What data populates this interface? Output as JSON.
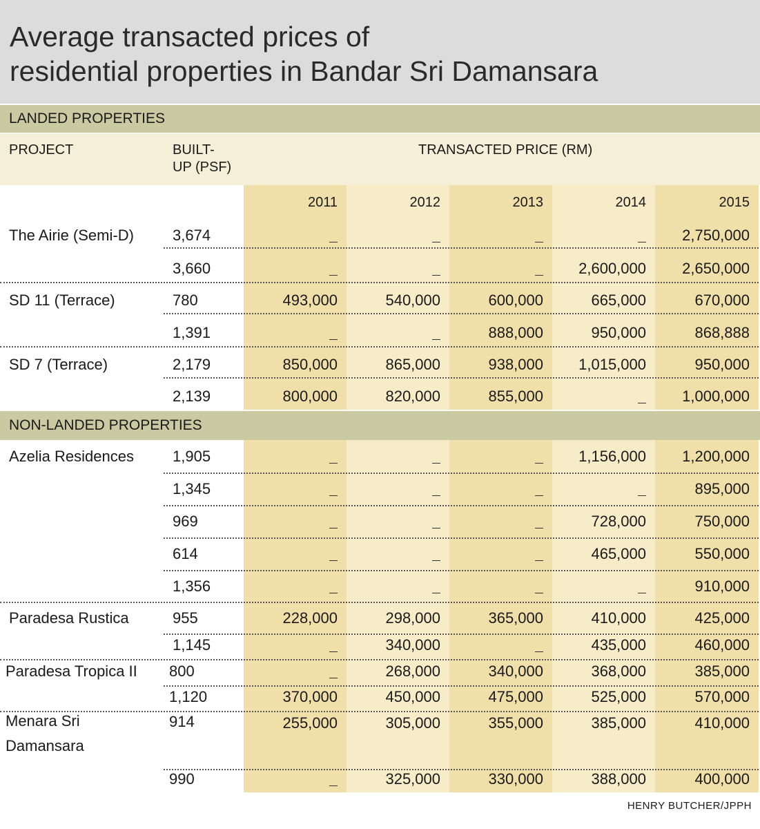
{
  "title": [
    "Average transacted prices of",
    "residential properties in Bandar Sri Damansara"
  ],
  "sections": {
    "landed": "LANDED PROPERTIES",
    "non_landed": "NON-LANDED PROPERTIES"
  },
  "headers": {
    "project": "PROJECT",
    "built_up_1": "BUILT-",
    "built_up_2": "UP (PSF)",
    "price": "TRANSACTED PRICE (RM)"
  },
  "years": [
    "2011",
    "2012",
    "2013",
    "2014",
    "2015"
  ],
  "landed_rows": [
    {
      "project": "The Airie (Semi-D)",
      "built": "3,674",
      "prices": [
        "_",
        "_",
        "_",
        "_",
        "2,750,000"
      ]
    },
    {
      "project": "",
      "built": "3,660",
      "prices": [
        "_",
        "_",
        "_",
        "2,600,000",
        "2,650,000"
      ]
    },
    {
      "project": "SD 11 (Terrace)",
      "built": "780",
      "prices": [
        "493,000",
        "540,000",
        "600,000",
        "665,000",
        "670,000"
      ]
    },
    {
      "project": "",
      "built": "1,391",
      "prices": [
        "_",
        "_",
        "888,000",
        "950,000",
        "868,888"
      ]
    },
    {
      "project": "SD 7 (Terrace)",
      "built": "2,179",
      "prices": [
        "850,000",
        "865,000",
        "938,000",
        "1,015,000",
        "950,000"
      ]
    },
    {
      "project": "",
      "built": "2,139",
      "prices": [
        "800,000",
        "820,000",
        "855,000",
        "_",
        "1,000,000"
      ]
    }
  ],
  "non_landed_rows": [
    {
      "project": "Azelia Residences",
      "built": "1,905",
      "prices": [
        "_",
        "_",
        "_",
        "1,156,000",
        "1,200,000"
      ]
    },
    {
      "project": "",
      "built": "1,345",
      "prices": [
        "_",
        "_",
        "_",
        "_",
        "895,000"
      ]
    },
    {
      "project": "",
      "built": "969",
      "prices": [
        "_",
        "_",
        "_",
        "728,000",
        "750,000"
      ]
    },
    {
      "project": "",
      "built": "614",
      "prices": [
        "_",
        "_",
        "_",
        "465,000",
        "550,000"
      ]
    },
    {
      "project": "",
      "built": "1,356",
      "prices": [
        "_",
        "_",
        "_",
        "_",
        "910,000"
      ]
    },
    {
      "project": "Paradesa Rustica",
      "built": "955",
      "prices": [
        "228,000",
        "298,000",
        "365,000",
        "410,000",
        "425,000"
      ]
    },
    {
      "project": "",
      "built": "1,145",
      "prices": [
        "_",
        "340,000",
        "_",
        "435,000",
        "460,000"
      ]
    },
    {
      "project": "Paradesa Tropica II",
      "built": "800",
      "prices": [
        "_",
        "268,000",
        "340,000",
        "368,000",
        "385,000"
      ]
    },
    {
      "project": "",
      "built": "1,120",
      "prices": [
        "370,000",
        "450,000",
        "475,000",
        "525,000",
        "570,000"
      ]
    },
    {
      "project": "Menara Sri Damansara",
      "built": "914",
      "prices": [
        "255,000",
        "305,000",
        "355,000",
        "385,000",
        "410,000"
      ]
    },
    {
      "project": "",
      "built": "990",
      "prices": [
        "_",
        "325,000",
        "330,000",
        "388,000",
        "400,000"
      ]
    }
  ],
  "source": "HENRY BUTCHER/JPPH"
}
